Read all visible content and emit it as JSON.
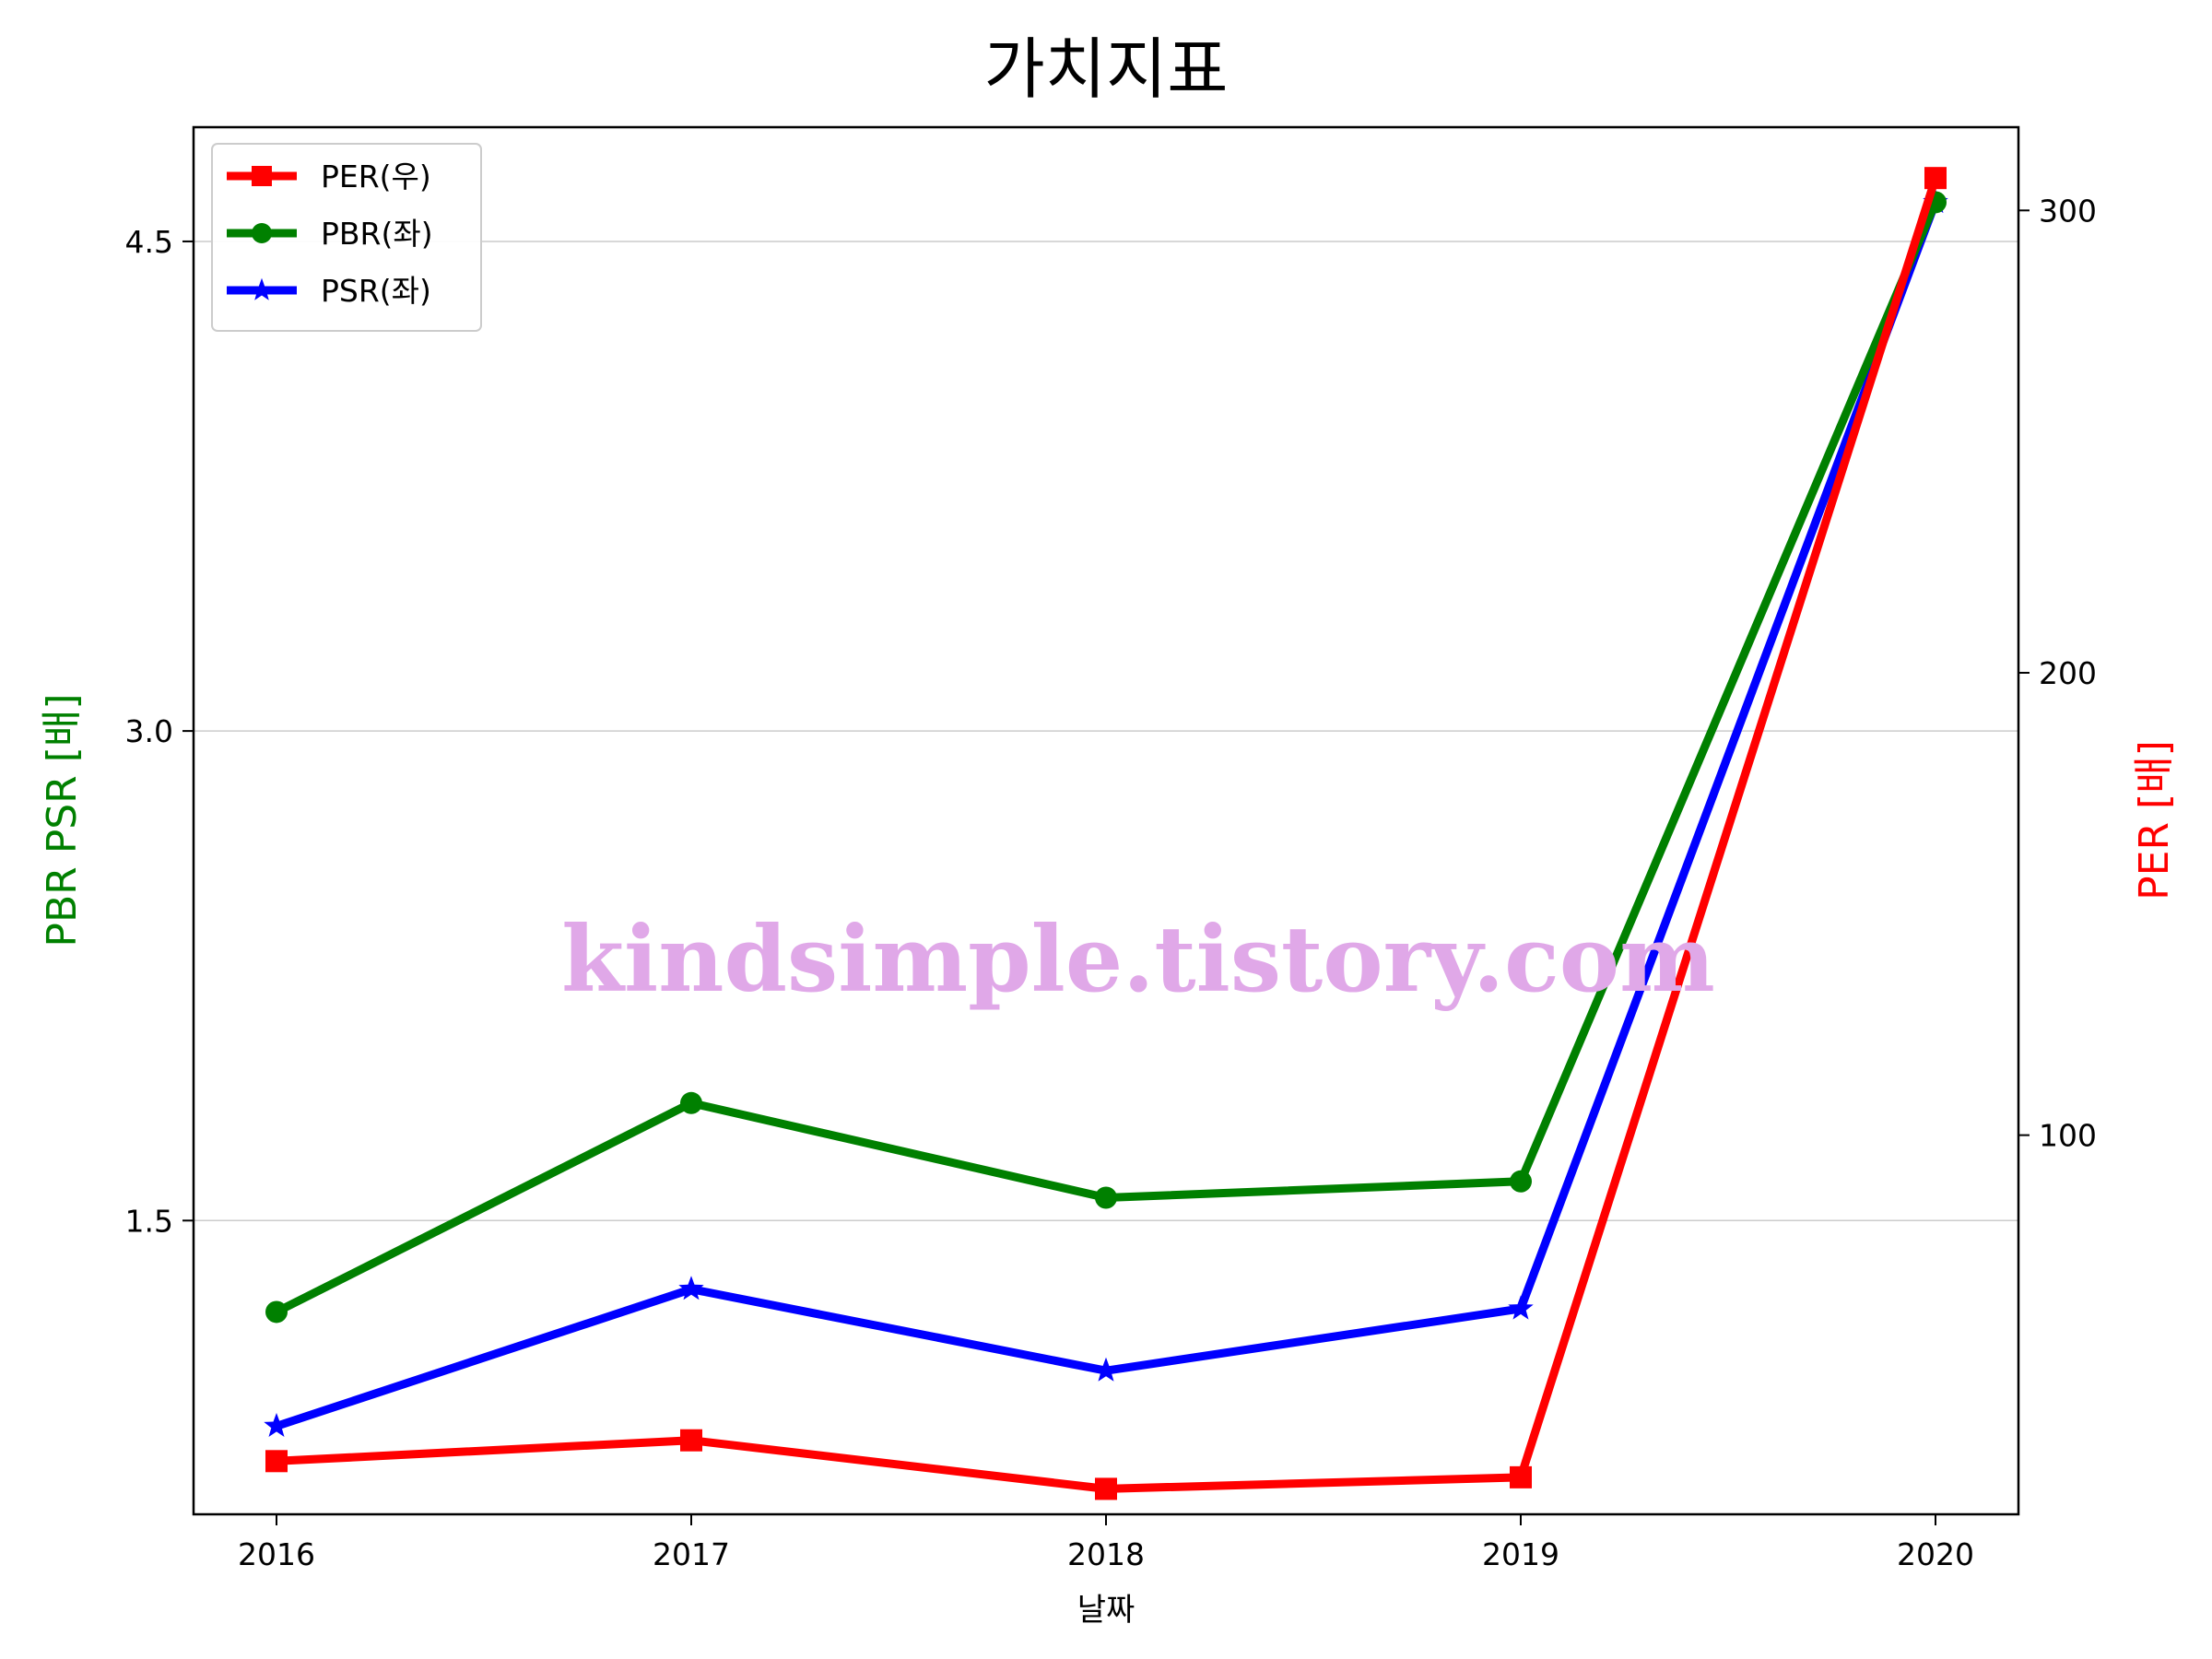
{
  "chart_data": {
    "type": "line",
    "title": "가치지표",
    "xlabel": "날짜",
    "ylabel_left": "PBR PSR [배]",
    "ylabel_right": "PER [배]",
    "categories": [
      "2016",
      "2017",
      "2018",
      "2019",
      "2020"
    ],
    "left_axis": {
      "ylim": [
        0.6,
        4.85
      ],
      "ticks": [
        1.5,
        3.0,
        4.5
      ],
      "tick_labels": [
        "1.5",
        "3.0",
        "4.5"
      ]
    },
    "right_axis": {
      "ylim": [
        18,
        318
      ],
      "ticks": [
        100,
        200,
        300
      ],
      "tick_labels": [
        "100",
        "200",
        "300"
      ]
    },
    "grid": "horizontal (left axis)",
    "legend_position": "top-left",
    "series": [
      {
        "name": "PER(우)",
        "axis": "right",
        "marker": "square",
        "color": "#ff0000",
        "values": [
          29.5,
          34,
          23.5,
          26,
          307
        ]
      },
      {
        "name": "PBR(좌)",
        "axis": "left",
        "marker": "circle",
        "color": "#008000",
        "values": [
          1.22,
          1.86,
          1.57,
          1.62,
          4.62
        ]
      },
      {
        "name": "PSR(좌)",
        "axis": "left",
        "marker": "star",
        "color": "#0000ff",
        "values": [
          0.87,
          1.29,
          1.04,
          1.23,
          4.62
        ]
      }
    ],
    "watermark": "kindsimple.tistory.com",
    "colors": {
      "left_label": "#008000",
      "right_label": "#ff0000",
      "watermark": "#e0a8e8"
    }
  }
}
